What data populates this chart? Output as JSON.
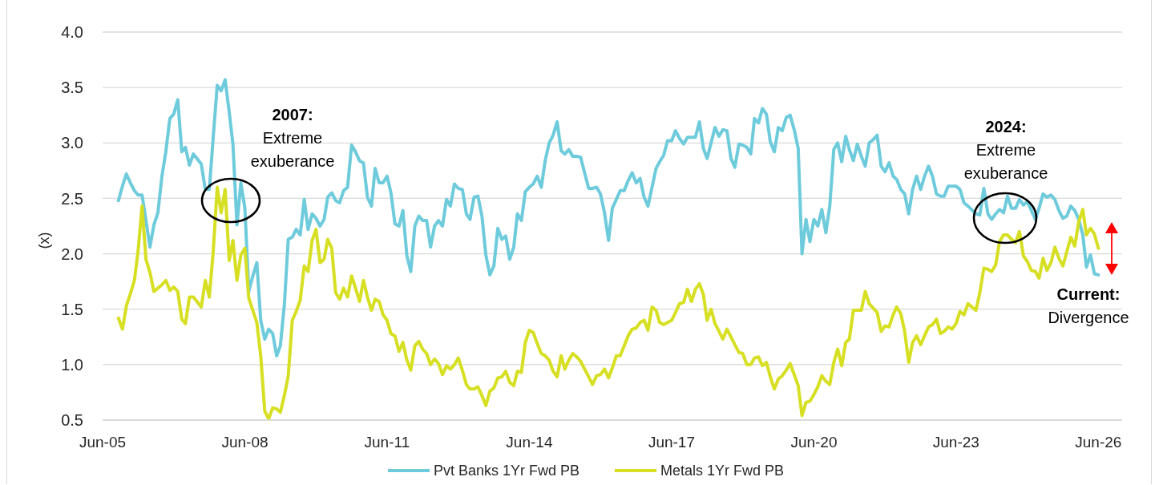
{
  "chart_data": {
    "type": "line",
    "ylabel": "(x)",
    "xlim": [
      "2005-06",
      "2026-12"
    ],
    "xticks": [
      {
        "value": "2005-06",
        "label": "Jun-05"
      },
      {
        "value": "2008-06",
        "label": "Jun-08"
      },
      {
        "value": "2011-06",
        "label": "Jun-11"
      },
      {
        "value": "2014-06",
        "label": "Jun-14"
      },
      {
        "value": "2017-06",
        "label": "Jun-17"
      },
      {
        "value": "2020-06",
        "label": "Jun-20"
      },
      {
        "value": "2023-06",
        "label": "Jun-23"
      },
      {
        "value": "2026-06",
        "label": "Jun-26"
      }
    ],
    "ylim": [
      0.5,
      4.0
    ],
    "yticks": [
      0.5,
      {
        "value": 1,
        "label": "1.0"
      },
      1.5,
      {
        "value": 2,
        "label": "2.0"
      },
      2.5,
      {
        "value": 3,
        "label": "3.0"
      },
      3.5,
      {
        "value": 4,
        "label": "4.0"
      }
    ],
    "grid": "y",
    "legend": "bottom",
    "x": [
      "2005-10",
      "2005-11",
      "2005-12",
      "2006-01",
      "2006-02",
      "2006-03",
      "2006-04",
      "2006-05",
      "2006-06",
      "2006-07",
      "2006-08",
      "2006-09",
      "2006-10",
      "2006-11",
      "2006-12",
      "2007-01",
      "2007-02",
      "2007-03",
      "2007-04",
      "2007-05",
      "2007-07",
      "2007-08",
      "2007-09",
      "2007-10",
      "2007-11",
      "2007-12",
      "2008-01",
      "2008-02",
      "2008-03",
      "2008-04",
      "2008-05",
      "2008-06",
      "2008-07",
      "2008-08",
      "2008-09",
      "2008-10",
      "2008-11",
      "2008-12",
      "2009-01",
      "2009-02",
      "2009-03",
      "2009-04",
      "2009-05",
      "2009-06",
      "2009-07",
      "2009-08",
      "2009-09",
      "2009-10",
      "2009-11",
      "2009-12",
      "2010-01",
      "2010-02",
      "2010-03",
      "2010-04",
      "2010-05",
      "2010-06",
      "2010-07",
      "2010-08",
      "2010-09",
      "2010-10",
      "2010-11",
      "2010-12",
      "2011-01",
      "2011-02",
      "2011-03",
      "2011-04",
      "2011-05",
      "2011-06",
      "2011-07",
      "2011-08",
      "2011-09",
      "2011-10",
      "2011-11",
      "2011-12",
      "2012-01",
      "2012-02",
      "2012-03",
      "2012-04",
      "2012-05",
      "2012-06",
      "2012-07",
      "2012-08",
      "2012-09",
      "2012-10",
      "2012-11",
      "2012-12",
      "2013-01",
      "2013-02",
      "2013-03",
      "2013-04",
      "2013-05",
      "2013-06",
      "2013-07",
      "2013-08",
      "2013-09",
      "2013-10",
      "2013-11",
      "2013-12",
      "2014-01",
      "2014-02",
      "2014-03",
      "2014-04",
      "2014-05",
      "2014-06",
      "2014-07",
      "2014-08",
      "2014-09",
      "2014-10",
      "2014-11",
      "2014-12",
      "2015-01",
      "2015-02",
      "2015-03",
      "2015-04",
      "2015-05",
      "2015-06",
      "2015-07",
      "2015-09",
      "2015-10",
      "2015-11",
      "2015-12",
      "2016-01",
      "2016-02",
      "2016-03",
      "2016-04",
      "2016-05",
      "2016-06",
      "2016-07",
      "2016-08",
      "2016-09",
      "2016-10",
      "2016-11",
      "2016-12",
      "2017-01",
      "2017-02",
      "2017-03",
      "2017-04",
      "2017-05",
      "2017-06",
      "2017-07",
      "2017-08",
      "2017-09",
      "2017-10",
      "2017-11",
      "2017-12",
      "2018-01",
      "2018-02",
      "2018-03",
      "2018-04",
      "2018-05",
      "2018-06",
      "2018-07",
      "2018-08",
      "2018-09",
      "2018-10",
      "2018-11",
      "2018-12",
      "2019-01",
      "2019-02",
      "2019-03",
      "2019-04",
      "2019-05",
      "2019-06",
      "2019-07",
      "2019-08",
      "2019-09",
      "2019-10",
      "2019-11",
      "2019-12",
      "2020-01",
      "2020-02",
      "2020-03",
      "2020-04",
      "2020-05",
      "2020-06",
      "2020-07",
      "2020-08",
      "2020-09",
      "2020-10",
      "2020-11",
      "2020-12",
      "2021-01",
      "2021-02",
      "2021-03",
      "2021-04",
      "2021-05",
      "2021-06",
      "2021-07",
      "2021-08",
      "2021-09",
      "2021-10",
      "2021-11",
      "2021-12",
      "2022-01",
      "2022-02",
      "2022-03",
      "2022-04",
      "2022-05",
      "2022-06",
      "2022-07",
      "2022-08",
      "2022-09",
      "2022-10",
      "2022-11",
      "2022-12",
      "2023-01",
      "2023-02",
      "2023-03",
      "2023-04",
      "2023-05",
      "2023-06",
      "2023-07",
      "2023-08",
      "2023-09",
      "2023-11",
      "2023-12",
      "2024-01",
      "2024-02",
      "2024-03",
      "2024-04",
      "2024-05",
      "2024-06",
      "2024-07",
      "2024-08",
      "2024-09",
      "2024-10",
      "2024-11",
      "2024-12",
      "2025-01",
      "2025-02",
      "2025-03",
      "2025-04",
      "2025-05",
      "2025-06",
      "2025-07",
      "2025-08",
      "2025-09",
      "2025-10",
      "2025-11",
      "2025-12",
      "2026-01",
      "2026-02",
      "2026-03",
      "2026-04",
      "2026-05",
      "2026-06"
    ],
    "series": [
      {
        "name": "Pvt Banks 1Yr Fwd PB",
        "color": "#6ecbdc",
        "values": [
          2.48,
          2.61,
          2.72,
          2.64,
          2.57,
          2.53,
          2.53,
          2.3,
          2.06,
          2.26,
          2.37,
          2.7,
          2.92,
          3.22,
          3.26,
          3.39,
          2.92,
          2.96,
          2.8,
          2.9,
          2.81,
          2.58,
          2.58,
          3.05,
          3.52,
          3.47,
          3.57,
          3.28,
          2.99,
          2.26,
          2.64,
          2.41,
          1.66,
          1.8,
          1.92,
          1.4,
          1.23,
          1.32,
          1.28,
          1.08,
          1.17,
          1.54,
          2.13,
          2.15,
          2.22,
          2.17,
          2.49,
          2.22,
          2.36,
          2.32,
          2.25,
          2.31,
          2.51,
          2.55,
          2.48,
          2.46,
          2.57,
          2.6,
          2.98,
          2.92,
          2.84,
          2.82,
          2.51,
          2.43,
          2.77,
          2.64,
          2.64,
          2.7,
          2.55,
          2.27,
          2.25,
          2.39,
          1.98,
          1.84,
          2.25,
          2.34,
          2.3,
          2.3,
          2.06,
          2.25,
          2.3,
          2.25,
          2.49,
          2.43,
          2.63,
          2.59,
          2.58,
          2.36,
          2.31,
          2.51,
          2.52,
          2.34,
          1.99,
          1.81,
          1.89,
          2.23,
          2.13,
          2.16,
          1.95,
          2.06,
          2.36,
          2.3,
          2.56,
          2.6,
          2.63,
          2.7,
          2.6,
          2.84,
          3.0,
          3.07,
          3.19,
          2.93,
          2.9,
          2.94,
          2.88,
          2.88,
          2.87,
          2.59,
          2.59,
          2.6,
          2.54,
          2.37,
          2.12,
          2.41,
          2.49,
          2.57,
          2.57,
          2.66,
          2.73,
          2.64,
          2.68,
          2.51,
          2.43,
          2.6,
          2.77,
          2.83,
          2.89,
          3.02,
          3.02,
          3.11,
          3.04,
          2.99,
          3.05,
          3.05,
          3.05,
          3.19,
          2.95,
          2.86,
          3.0,
          3.14,
          3.06,
          3.12,
          3.11,
          2.86,
          2.78,
          2.99,
          2.98,
          2.96,
          2.9,
          3.22,
          3.18,
          3.31,
          3.26,
          3.01,
          2.92,
          3.14,
          3.11,
          3.23,
          3.25,
          3.12,
          2.95,
          2.0,
          2.31,
          2.11,
          2.31,
          2.25,
          2.4,
          2.19,
          2.43,
          2.94,
          3.0,
          2.83,
          3.06,
          2.94,
          2.84,
          2.99,
          2.88,
          2.79,
          3.0,
          3.03,
          3.07,
          2.79,
          2.74,
          2.82,
          2.7,
          2.67,
          2.58,
          2.54,
          2.36,
          2.58,
          2.7,
          2.58,
          2.7,
          2.79,
          2.7,
          2.54,
          2.52,
          2.52,
          2.61,
          2.61,
          2.61,
          2.58,
          2.46,
          2.43,
          2.36,
          2.35,
          2.59,
          2.36,
          2.31,
          2.36,
          2.4,
          2.37,
          2.52,
          2.41,
          2.41,
          2.49,
          2.44,
          2.47,
          2.39,
          2.31,
          2.41,
          2.54,
          2.51,
          2.53,
          2.49,
          2.39,
          2.32,
          2.34,
          2.43,
          2.39,
          2.31,
          2.17,
          1.88,
          1.99,
          1.82,
          1.81
        ]
      },
      {
        "name": "Metals 1Yr Fwd PB",
        "color": "#d7df23",
        "values": [
          1.42,
          1.32,
          1.53,
          1.64,
          1.76,
          2.02,
          2.43,
          1.95,
          1.83,
          1.66,
          1.69,
          1.72,
          1.76,
          1.67,
          1.7,
          1.66,
          1.41,
          1.37,
          1.61,
          1.61,
          1.52,
          1.76,
          1.61,
          2.02,
          2.6,
          2.37,
          2.58,
          1.94,
          2.12,
          1.76,
          1.99,
          2.05,
          1.6,
          1.49,
          1.38,
          1.08,
          0.58,
          0.51,
          0.61,
          0.6,
          0.57,
          0.72,
          0.9,
          1.4,
          1.48,
          1.58,
          1.89,
          1.84,
          2.12,
          2.22,
          1.92,
          1.95,
          2.13,
          2.05,
          1.65,
          1.59,
          1.69,
          1.61,
          1.8,
          1.69,
          1.57,
          1.76,
          1.61,
          1.49,
          1.59,
          1.57,
          1.45,
          1.4,
          1.28,
          1.26,
          1.12,
          1.2,
          1.04,
          0.95,
          1.17,
          1.21,
          1.14,
          1.1,
          1.0,
          1.05,
          1.01,
          0.91,
          0.99,
          0.96,
          1.0,
          1.06,
          0.95,
          0.82,
          0.78,
          0.78,
          0.8,
          0.72,
          0.63,
          0.76,
          0.79,
          0.88,
          0.89,
          0.94,
          0.84,
          0.81,
          0.94,
          0.93,
          1.2,
          1.31,
          1.29,
          1.19,
          1.1,
          1.08,
          1.04,
          0.94,
          0.89,
          1.08,
          0.96,
          1.04,
          1.1,
          1.07,
          1.03,
          0.89,
          0.82,
          0.9,
          0.91,
          0.96,
          0.88,
          0.97,
          1.08,
          1.08,
          1.17,
          1.26,
          1.32,
          1.33,
          1.38,
          1.4,
          1.31,
          1.52,
          1.49,
          1.38,
          1.36,
          1.38,
          1.4,
          1.47,
          1.55,
          1.56,
          1.68,
          1.57,
          1.68,
          1.73,
          1.63,
          1.4,
          1.5,
          1.37,
          1.3,
          1.23,
          1.32,
          1.25,
          1.18,
          1.11,
          1.1,
          1.0,
          1.0,
          1.06,
          1.07,
          0.99,
          1.02,
          0.89,
          0.78,
          0.87,
          0.9,
          0.95,
          1.01,
          0.91,
          0.81,
          0.54,
          0.66,
          0.67,
          0.73,
          0.8,
          0.9,
          0.85,
          0.82,
          1.02,
          1.14,
          0.99,
          1.2,
          1.23,
          1.49,
          1.49,
          1.49,
          1.66,
          1.55,
          1.51,
          1.47,
          1.3,
          1.35,
          1.34,
          1.45,
          1.52,
          1.46,
          1.3,
          1.02,
          1.2,
          1.26,
          1.18,
          1.26,
          1.34,
          1.36,
          1.41,
          1.28,
          1.3,
          1.34,
          1.32,
          1.37,
          1.48,
          1.45,
          1.55,
          1.49,
          1.65,
          1.87,
          1.86,
          1.84,
          1.9,
          2.11,
          2.17,
          2.17,
          2.13,
          2.1,
          2.2,
          1.98,
          1.93,
          1.85,
          1.84,
          1.78,
          1.96,
          1.85,
          1.92,
          2.06,
          1.96,
          1.89,
          2.02,
          2.15,
          2.07,
          2.29,
          2.4,
          2.17,
          2.23,
          2.18,
          2.05
        ]
      }
    ],
    "annotations": [
      "2007:\nExtreme\nexuberance",
      "2024:\nExtreme\nexuberance",
      "Current:\nDivergence"
    ]
  }
}
